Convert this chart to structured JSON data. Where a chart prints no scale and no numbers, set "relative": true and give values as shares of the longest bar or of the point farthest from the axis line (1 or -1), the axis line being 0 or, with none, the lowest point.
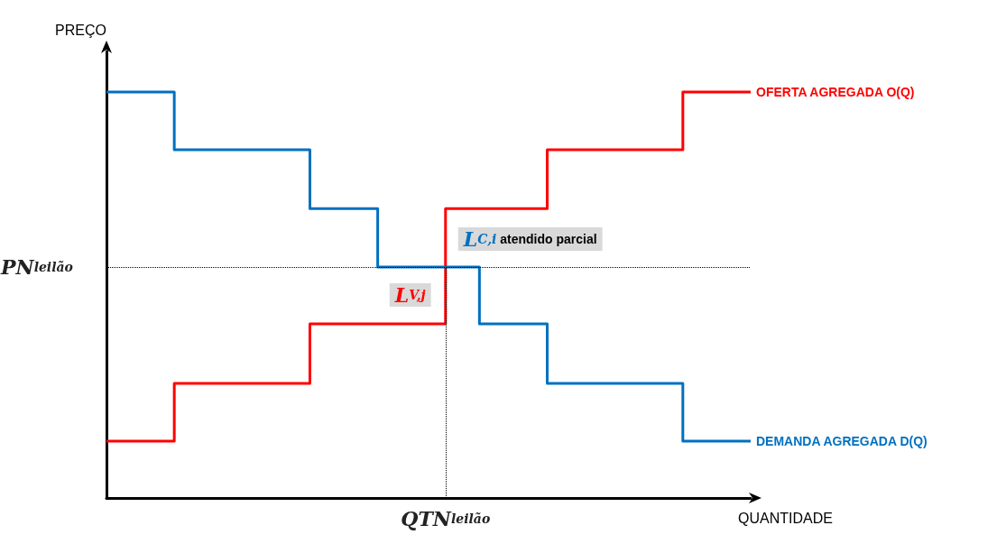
{
  "chart_data": {
    "type": "step",
    "relative": true,
    "xlabel": "QUANTIDADE",
    "ylabel": "PREÇO",
    "categories": [
      null,
      null,
      null,
      null,
      null,
      null,
      null,
      null,
      null,
      null,
      null,
      null,
      null,
      null,
      null,
      null,
      null,
      null,
      null,
      null
    ],
    "series": [
      {
        "name": "OFERTA AGREGADA O(Q)",
        "color": "#ff0000",
        "values": [
          0.14,
          0.14,
          0.282,
          0.282,
          0.282,
          0.282,
          0.429,
          0.429,
          0.429,
          0.429,
          0.713,
          0.713,
          0.713,
          0.858,
          0.858,
          0.858,
          0.858,
          1,
          1,
          1
        ]
      },
      {
        "name": "DEMANDA AGREGADA D(Q)",
        "color": "#0070c0",
        "values": [
          1,
          1,
          0.858,
          0.858,
          0.858,
          0.858,
          0.713,
          0.713,
          0.569,
          0.569,
          0.569,
          0.429,
          0.429,
          0.282,
          0.282,
          0.282,
          0.282,
          0.14,
          0.14,
          0.14
        ]
      }
    ],
    "ref_lines": [
      {
        "axis": "y",
        "value": 0.569,
        "label": "PN$_{leilão}$",
        "line_style": "dotted",
        "color": "#000000"
      }
    ],
    "annotations": [
      "L$_{C,i}$ atendido parcial",
      "L$_{V,j}$",
      "QTN$_{leilão}$"
    ],
    "legend": false,
    "grid": false,
    "marker": "none",
    "line_style": "solid"
  }
}
